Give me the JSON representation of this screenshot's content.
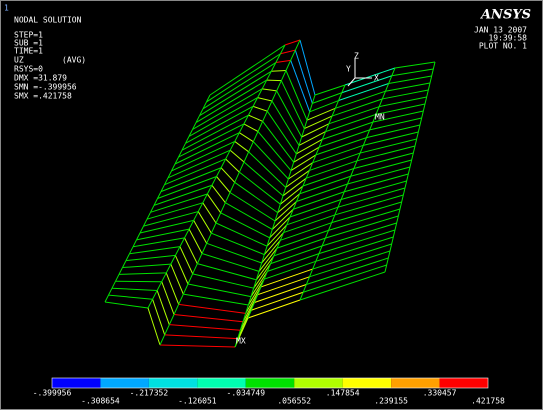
{
  "window_number": "1",
  "info": [
    "NODAL SOLUTION",
    "STEP=1",
    "SUB =1",
    "TIME=1",
    "UZ",
    "(AVG)",
    "RSYS=0",
    "DMX =31.879",
    "SMN =-.399956",
    "SMX =.421758"
  ],
  "logo": "ANSYS",
  "date": "JAN 13 2007",
  "time": "19:39:58",
  "plot_no": "PLOT NO.   1",
  "triad": [
    "Y",
    "Z",
    "X"
  ],
  "markers": {
    "min": "MN",
    "max": "MX"
  },
  "legend": {
    "colors": [
      "#0000ff",
      "#00a8ff",
      "#00e0e0",
      "#00ffb0",
      "#00e000",
      "#b0ff00",
      "#ffff00",
      "#ffa000",
      "#ff0000"
    ],
    "labels": [
      "-.399956",
      "-.308654",
      "-.217352",
      "-.126051",
      "-.034749",
      ".056552",
      ".147854",
      ".239155",
      ".330457",
      ".421758"
    ]
  }
}
